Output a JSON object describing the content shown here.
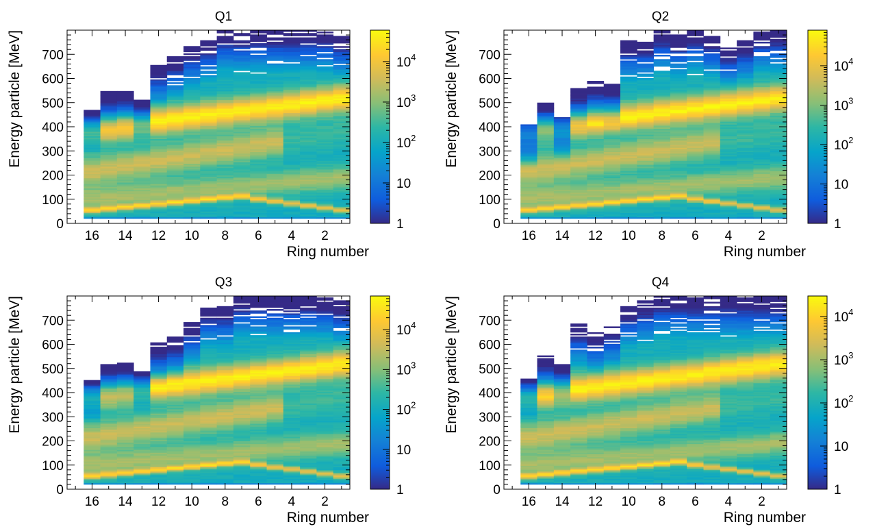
{
  "figure": {
    "background": "#ffffff"
  },
  "chart_data": [
    {
      "type": "heatmap",
      "title": "Q1",
      "xlabel": "Ring number",
      "ylabel": "Energy particle [MeV]",
      "xlim": [
        17.5,
        0.5
      ],
      "ylim": [
        0,
        800
      ],
      "x_reversed": true,
      "x_ticks": [
        "16",
        "14",
        "12",
        "10",
        "8",
        "6",
        "4",
        "2"
      ],
      "x_tick_values": [
        16,
        14,
        12,
        10,
        8,
        6,
        4,
        2
      ],
      "y_ticks": [
        "0",
        "100",
        "200",
        "300",
        "400",
        "500",
        "600",
        "700"
      ],
      "y_tick_values": [
        0,
        100,
        200,
        300,
        400,
        500,
        600,
        700
      ],
      "colorbar": {
        "scale": "log",
        "min": 1,
        "max": 60000,
        "ticks": [
          "1",
          "10",
          "10^2",
          "10^3",
          "10^4"
        ],
        "tick_values": [
          1,
          10,
          100,
          1000,
          10000
        ]
      },
      "rings": [
        16,
        15,
        14,
        13,
        12,
        11,
        10,
        9,
        8,
        7,
        6,
        5,
        4,
        3,
        2,
        1
      ],
      "main_band_center_mev": [
        385,
        395,
        405,
        415,
        422,
        335,
        345,
        360,
        385,
        405,
        430,
        455,
        480,
        500,
        515,
        520
      ],
      "second_band_center_mev": [
        230,
        240,
        255,
        270,
        290,
        310,
        330,
        350
      ],
      "low_band_center_mev": [
        55,
        60,
        65,
        72,
        80,
        90,
        100,
        108,
        115,
        110,
        95,
        80,
        65,
        55
      ],
      "max_energy_mev": [
        470,
        545,
        555,
        510,
        660,
        690,
        735,
        760,
        800,
        800,
        800,
        800,
        800,
        800,
        800,
        780
      ]
    },
    {
      "type": "heatmap",
      "title": "Q2",
      "xlabel": "Ring number",
      "ylabel": "Energy particle [MeV]",
      "xlim": [
        17.5,
        0.5
      ],
      "ylim": [
        0,
        800
      ],
      "x_reversed": true,
      "x_ticks": [
        "16",
        "14",
        "12",
        "10",
        "8",
        "6",
        "4",
        "2"
      ],
      "x_tick_values": [
        16,
        14,
        12,
        10,
        8,
        6,
        4,
        2
      ],
      "y_ticks": [
        "0",
        "100",
        "200",
        "300",
        "400",
        "500",
        "600",
        "700"
      ],
      "y_tick_values": [
        0,
        100,
        200,
        300,
        400,
        500,
        600,
        700
      ],
      "colorbar": {
        "scale": "log",
        "min": 1,
        "max": 80000,
        "ticks": [
          "1",
          "10",
          "10^2",
          "10^3",
          "10^4"
        ],
        "tick_values": [
          1,
          10,
          100,
          1000,
          10000
        ]
      },
      "rings": [
        16,
        15,
        14,
        13,
        12,
        11,
        10,
        9,
        8,
        7,
        6,
        5,
        4,
        3,
        2,
        1
      ],
      "max_energy_mev": [
        410,
        500,
        440,
        560,
        590,
        580,
        760,
        760,
        800,
        780,
        800,
        780,
        735,
        760,
        800,
        800
      ]
    },
    {
      "type": "heatmap",
      "title": "Q3",
      "xlabel": "Ring number",
      "ylabel": "Energy particle [MeV]",
      "xlim": [
        17.5,
        0.5
      ],
      "ylim": [
        0,
        800
      ],
      "x_reversed": true,
      "x_ticks": [
        "16",
        "14",
        "12",
        "10",
        "8",
        "6",
        "4",
        "2"
      ],
      "x_tick_values": [
        16,
        14,
        12,
        10,
        8,
        6,
        4,
        2
      ],
      "y_ticks": [
        "0",
        "100",
        "200",
        "300",
        "400",
        "500",
        "600",
        "700"
      ],
      "y_tick_values": [
        0,
        100,
        200,
        300,
        400,
        500,
        600,
        700
      ],
      "colorbar": {
        "scale": "log",
        "min": 1,
        "max": 70000,
        "ticks": [
          "1",
          "10",
          "10^2",
          "10^3",
          "10^4"
        ],
        "tick_values": [
          1,
          10,
          100,
          1000,
          10000
        ]
      },
      "rings": [
        16,
        15,
        14,
        13,
        12,
        11,
        10,
        9,
        8,
        7,
        6,
        5,
        4,
        3,
        2,
        1
      ],
      "max_energy_mev": [
        450,
        520,
        525,
        490,
        610,
        630,
        690,
        760,
        760,
        800,
        800,
        800,
        800,
        800,
        800,
        780
      ]
    },
    {
      "type": "heatmap",
      "title": "Q4",
      "xlabel": "Ring number",
      "ylabel": "Energy particle [MeV]",
      "xlim": [
        17.5,
        0.5
      ],
      "ylim": [
        0,
        800
      ],
      "x_reversed": true,
      "x_ticks": [
        "16",
        "14",
        "12",
        "10",
        "8",
        "6",
        "4",
        "2"
      ],
      "x_tick_values": [
        16,
        14,
        12,
        10,
        8,
        6,
        4,
        2
      ],
      "y_ticks": [
        "0",
        "100",
        "200",
        "300",
        "400",
        "500",
        "600",
        "700"
      ],
      "y_tick_values": [
        0,
        100,
        200,
        300,
        400,
        500,
        600,
        700
      ],
      "colorbar": {
        "scale": "log",
        "min": 1,
        "max": 30000,
        "ticks": [
          "1",
          "10",
          "10^2",
          "10^3",
          "10^4"
        ],
        "tick_values": [
          1,
          10,
          100,
          1000,
          10000
        ]
      },
      "rings": [
        16,
        15,
        14,
        13,
        12,
        11,
        10,
        9,
        8,
        7,
        6,
        5,
        4,
        3,
        2,
        1
      ],
      "max_energy_mev": [
        460,
        555,
        520,
        685,
        655,
        680,
        760,
        780,
        800,
        800,
        800,
        800,
        800,
        800,
        800,
        800
      ]
    }
  ]
}
